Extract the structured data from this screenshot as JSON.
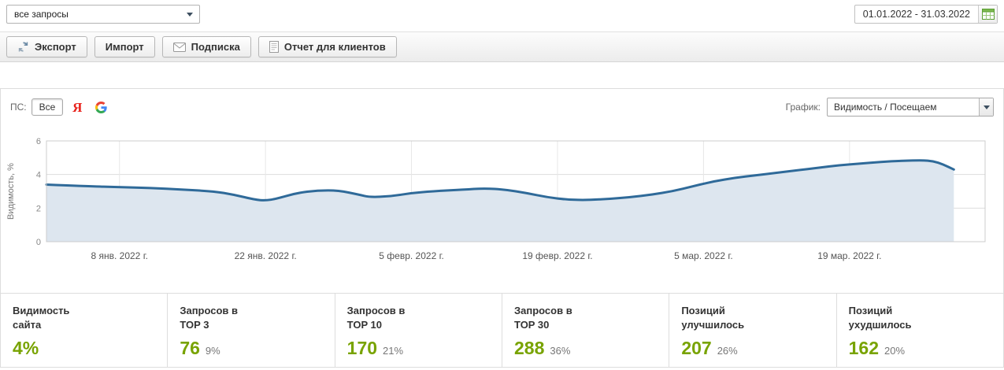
{
  "colors": {
    "accent_green": "#78A300",
    "chart_line": "#2F6A99",
    "chart_fill": "#DDE6EF",
    "yandex_red": "#E8231D"
  },
  "top_bar": {
    "queries_select_value": "все запросы",
    "date_range_value": "01.01.2022 - 31.03.2022"
  },
  "toolbar": {
    "buttons": [
      {
        "label": "Экспорт",
        "icon": "export-icon"
      },
      {
        "label": "Импорт",
        "icon": ""
      },
      {
        "label": "Подписка",
        "icon": "mail-icon"
      },
      {
        "label": "Отчет для клиентов",
        "icon": "report-icon"
      }
    ]
  },
  "filters": {
    "ps_label": "ПС:",
    "ps_all_label": "Все",
    "ps_yandex_label": "Я",
    "graph_label": "График:",
    "graph_select_value": "Видимость / Посещаем"
  },
  "chart_data": {
    "type": "area",
    "title": "",
    "ylabel": "Видимость, %",
    "xlabel": "",
    "ylim": [
      0,
      6
    ],
    "yticks": [
      0,
      2,
      4,
      6
    ],
    "xlim": [
      0,
      90
    ],
    "x_unit": "days_since_2022-01-01",
    "grid": true,
    "legend": false,
    "xticks": [
      {
        "x": 7,
        "label": "8 янв. 2022 г."
      },
      {
        "x": 21,
        "label": "22 янв. 2022 г."
      },
      {
        "x": 35,
        "label": "5 февр. 2022 г."
      },
      {
        "x": 49,
        "label": "19 февр. 2022 г."
      },
      {
        "x": 63,
        "label": "5 мар. 2022 г."
      },
      {
        "x": 77,
        "label": "19 мар. 2022 г."
      }
    ],
    "series": [
      {
        "name": "Видимость, %",
        "color": "#2F6A99",
        "fill": "#DDE6EF",
        "points": [
          [
            0,
            3.4
          ],
          [
            4,
            3.3
          ],
          [
            7,
            3.25
          ],
          [
            10,
            3.2
          ],
          [
            13,
            3.1
          ],
          [
            16,
            3.0
          ],
          [
            18,
            2.8
          ],
          [
            20,
            2.5
          ],
          [
            21,
            2.45
          ],
          [
            22,
            2.55
          ],
          [
            24,
            2.9
          ],
          [
            26,
            3.05
          ],
          [
            28,
            3.05
          ],
          [
            30,
            2.8
          ],
          [
            31,
            2.65
          ],
          [
            33,
            2.7
          ],
          [
            35,
            2.9
          ],
          [
            37,
            3.0
          ],
          [
            40,
            3.1
          ],
          [
            42,
            3.18
          ],
          [
            44,
            3.1
          ],
          [
            46,
            2.9
          ],
          [
            48,
            2.65
          ],
          [
            50,
            2.5
          ],
          [
            52,
            2.48
          ],
          [
            54,
            2.55
          ],
          [
            56,
            2.65
          ],
          [
            58,
            2.8
          ],
          [
            60,
            3.0
          ],
          [
            62,
            3.3
          ],
          [
            64,
            3.6
          ],
          [
            66,
            3.8
          ],
          [
            68,
            3.95
          ],
          [
            70,
            4.1
          ],
          [
            72,
            4.25
          ],
          [
            74,
            4.4
          ],
          [
            76,
            4.55
          ],
          [
            78,
            4.65
          ],
          [
            80,
            4.75
          ],
          [
            82,
            4.82
          ],
          [
            84,
            4.85
          ],
          [
            85,
            4.8
          ],
          [
            86,
            4.6
          ],
          [
            87,
            4.3
          ]
        ]
      }
    ]
  },
  "stats": {
    "cards": [
      {
        "title_line1": "Видимость",
        "title_line2": "сайта",
        "value": "4%",
        "percent": ""
      },
      {
        "title_line1": "Запросов в",
        "title_line2": "TOP 3",
        "value": "76",
        "percent": "9%"
      },
      {
        "title_line1": "Запросов в",
        "title_line2": "TOP 10",
        "value": "170",
        "percent": "21%"
      },
      {
        "title_line1": "Запросов в",
        "title_line2": "TOP 30",
        "value": "288",
        "percent": "36%"
      },
      {
        "title_line1": "Позиций",
        "title_line2": "улучшилось",
        "value": "207",
        "percent": "26%"
      },
      {
        "title_line1": "Позиций",
        "title_line2": "ухудшилось",
        "value": "162",
        "percent": "20%"
      }
    ]
  }
}
